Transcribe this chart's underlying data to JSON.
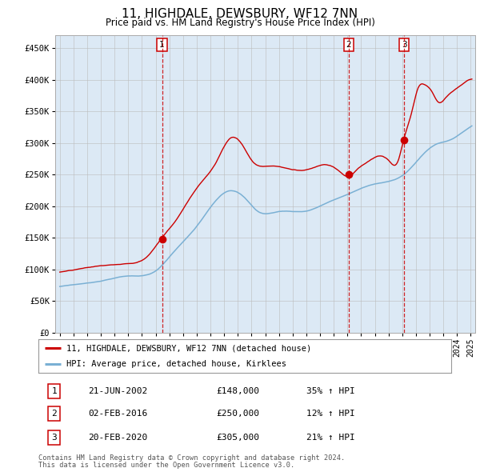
{
  "title": "11, HIGHDALE, DEWSBURY, WF12 7NN",
  "subtitle": "Price paid vs. HM Land Registry's House Price Index (HPI)",
  "bg_color": "#dce9f5",
  "fig_bg_color": "#ffffff",
  "red_line_color": "#cc0000",
  "blue_line_color": "#7ab0d4",
  "sale_marker_color": "#cc0000",
  "vline_color": "#cc0000",
  "grid_color": "#bbbbbb",
  "sale_dates": [
    "2002-06-21",
    "2016-02-02",
    "2020-02-20"
  ],
  "sale_prices": [
    148000,
    250000,
    305000
  ],
  "sale_labels": [
    "1",
    "2",
    "3"
  ],
  "sale_date_labels": [
    "21-JUN-2002",
    "02-FEB-2016",
    "20-FEB-2020"
  ],
  "sale_price_labels": [
    "£148,000",
    "£250,000",
    "£305,000"
  ],
  "sale_hpi_labels": [
    "35% ↑ HPI",
    "12% ↑ HPI",
    "21% ↑ HPI"
  ],
  "legend_entries": [
    "11, HIGHDALE, DEWSBURY, WF12 7NN (detached house)",
    "HPI: Average price, detached house, Kirklees"
  ],
  "footer_line1": "Contains HM Land Registry data © Crown copyright and database right 2024.",
  "footer_line2": "This data is licensed under the Open Government Licence v3.0.",
  "ylim": [
    0,
    470000
  ],
  "yticks": [
    0,
    50000,
    100000,
    150000,
    200000,
    250000,
    300000,
    350000,
    400000,
    450000
  ],
  "ytick_labels": [
    "£0",
    "£50K",
    "£100K",
    "£150K",
    "£200K",
    "£250K",
    "£300K",
    "£350K",
    "£400K",
    "£450K"
  ]
}
